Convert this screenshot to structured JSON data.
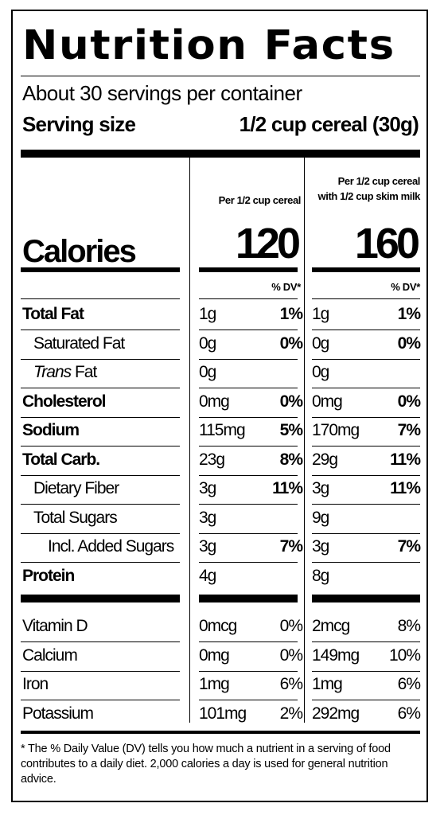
{
  "title": "Nutrition Facts",
  "servings": "About 30 servings per container",
  "serving_size": {
    "label": "Serving size",
    "value": "1/2 cup cereal (30g)"
  },
  "columns": [
    {
      "header": [
        "Per 1/2 cup cereal"
      ],
      "calories": "120"
    },
    {
      "header": [
        "Per 1/2 cup cereal",
        "with 1/2 cup skim milk"
      ],
      "calories": "160"
    }
  ],
  "calories_label": "Calories",
  "dv_header": "% DV*",
  "nutrients": [
    {
      "name": "Total Fat",
      "bold": true,
      "indent": 0,
      "c1": "1g",
      "p1": "1%",
      "c2": "1g",
      "p2": "1%"
    },
    {
      "name": "Saturated Fat",
      "bold": false,
      "indent": 1,
      "c1": "0g",
      "p1": "0%",
      "c2": "0g",
      "p2": "0%"
    },
    {
      "name_italic": "Trans",
      "name": " Fat",
      "bold": false,
      "indent": 1,
      "c1": "0g",
      "p1": "",
      "c2": "0g",
      "p2": ""
    },
    {
      "name": "Cholesterol",
      "bold": true,
      "indent": 0,
      "c1": "0mg",
      "p1": "0%",
      "c2": "0mg",
      "p2": "0%"
    },
    {
      "name": "Sodium",
      "bold": true,
      "indent": 0,
      "c1": "115mg",
      "p1": "5%",
      "c2": "170mg",
      "p2": "7%"
    },
    {
      "name": "Total Carb.",
      "bold": true,
      "indent": 0,
      "c1": "23g",
      "p1": "8%",
      "c2": "29g",
      "p2": "11%"
    },
    {
      "name": "Dietary Fiber",
      "bold": false,
      "indent": 1,
      "c1": "3g",
      "p1": "11%",
      "c2": "3g",
      "p2": "11%"
    },
    {
      "name": "Total Sugars",
      "bold": false,
      "indent": 1,
      "c1": "3g",
      "p1": "",
      "c2": "9g",
      "p2": ""
    },
    {
      "name": "Incl. Added Sugars",
      "bold": false,
      "indent": 2,
      "c1": "3g",
      "p1": "7%",
      "c2": "3g",
      "p2": "7%"
    },
    {
      "name": "Protein",
      "bold": true,
      "indent": 0,
      "c1": "4g",
      "p1": "",
      "c2": "8g",
      "p2": ""
    }
  ],
  "vitamins": [
    {
      "name": "Vitamin D",
      "c1": "0mcg",
      "p1": "0%",
      "c2": "2mcg",
      "p2": "8%"
    },
    {
      "name": "Calcium",
      "c1": "0mg",
      "p1": "0%",
      "c2": "149mg",
      "p2": "10%"
    },
    {
      "name": "Iron",
      "c1": "1mg",
      "p1": "6%",
      "c2": "1mg",
      "p2": "6%"
    },
    {
      "name": "Potassium",
      "c1": "101mg",
      "p1": "2%",
      "c2": "292mg",
      "p2": "6%"
    }
  ],
  "footnote": "* The % Daily Value (DV) tells you how much a nutrient in a serving of food contributes to a daily diet. 2,000 calories a day is used for general nutrition advice."
}
